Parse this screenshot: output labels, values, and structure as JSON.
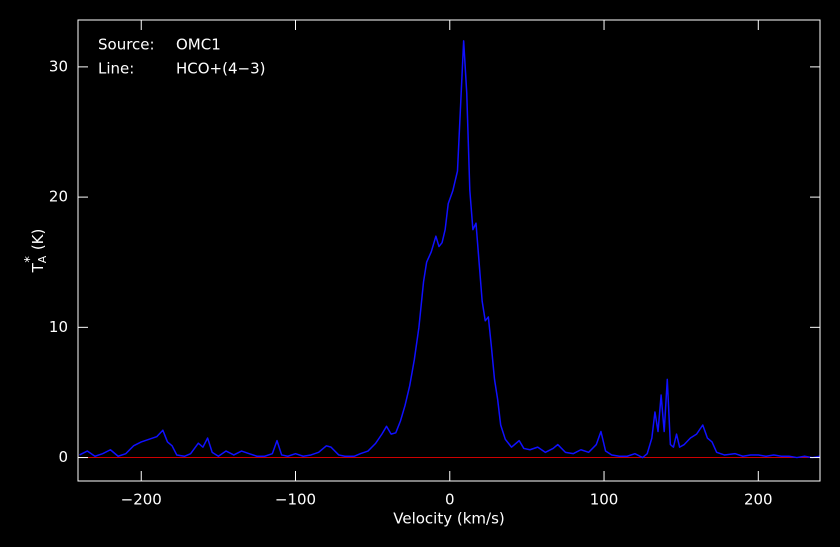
{
  "chart_data": {
    "type": "line",
    "annotations": [
      [
        "Source:",
        "OMC1"
      ],
      [
        "Line:",
        "HCO+(4−3)"
      ]
    ],
    "x_label": "Velocity (km/s)",
    "y_label": {
      "base": "T",
      "sup": "*",
      "sub": "A",
      "unit": "(K)"
    },
    "xlim": [
      -241,
      240
    ],
    "ylim": [
      -1.8,
      33.6
    ],
    "xticks": [
      {
        "value": -200,
        "label": "−200"
      },
      {
        "value": -100,
        "label": "−100"
      },
      0,
      100,
      200
    ],
    "yticks": [
      0,
      10,
      20,
      30
    ],
    "background": "#000000",
    "axis_color": "#ffffff",
    "baseline_color": "#cc0000",
    "x": [
      -240,
      -235,
      -230,
      -225,
      -220,
      -215,
      -210,
      -205,
      -200,
      -195,
      -190,
      -186,
      -183,
      -180,
      -177,
      -172,
      -168,
      -163,
      -160,
      -157,
      -154,
      -150,
      -145,
      -140,
      -135,
      -130,
      -125,
      -120,
      -115,
      -112,
      -109,
      -105,
      -100,
      -95,
      -90,
      -85,
      -80,
      -77,
      -72,
      -68,
      -62,
      -58,
      -53,
      -48,
      -44,
      -41,
      -38,
      -35,
      -32,
      -29,
      -26,
      -23,
      -20,
      -17,
      -15,
      -12,
      -9,
      -7,
      -5,
      -3,
      -1,
      2,
      5,
      7,
      9,
      11,
      13,
      15,
      17,
      19,
      21,
      23,
      25,
      27,
      29,
      31,
      33,
      36,
      40,
      45,
      48,
      52,
      57,
      62,
      67,
      70,
      75,
      80,
      85,
      90,
      95,
      98,
      101,
      105,
      110,
      115,
      120,
      125,
      128,
      131,
      133,
      135,
      137,
      139,
      141,
      143,
      145,
      147,
      149,
      152,
      156,
      160,
      164,
      167,
      170,
      173,
      178,
      185,
      190,
      195,
      200,
      205,
      210,
      215,
      220,
      225,
      230,
      235,
      240
    ],
    "series": [
      {
        "color": "#1010ff",
        "values": [
          0.2,
          0.5,
          0.1,
          0.3,
          0.6,
          0.1,
          0.3,
          0.9,
          1.2,
          1.4,
          1.6,
          2.1,
          1.2,
          0.9,
          0.2,
          0.1,
          0.3,
          1.1,
          0.8,
          1.5,
          0.4,
          0.1,
          0.5,
          0.2,
          0.5,
          0.3,
          0.1,
          0.1,
          0.3,
          1.3,
          0.2,
          0.1,
          0.3,
          0.1,
          0.2,
          0.4,
          0.9,
          0.8,
          0.2,
          0.1,
          0.1,
          0.3,
          0.5,
          1.1,
          1.8,
          2.4,
          1.8,
          1.9,
          2.8,
          4.0,
          5.5,
          7.5,
          10.0,
          13.5,
          15.0,
          15.8,
          17.0,
          16.2,
          16.5,
          17.5,
          19.5,
          20.5,
          22.0,
          27.0,
          32.0,
          28.0,
          20.5,
          17.5,
          18.0,
          15.0,
          12.0,
          10.5,
          10.8,
          8.5,
          6.0,
          4.5,
          2.5,
          1.4,
          0.8,
          1.3,
          0.7,
          0.6,
          0.8,
          0.4,
          0.7,
          1.0,
          0.4,
          0.3,
          0.6,
          0.4,
          1.0,
          2.0,
          0.5,
          0.2,
          0.1,
          0.1,
          0.3,
          0.0,
          0.3,
          1.5,
          3.5,
          2.0,
          4.8,
          2.0,
          6.0,
          1.0,
          0.8,
          1.8,
          0.8,
          1.0,
          1.5,
          1.8,
          2.5,
          1.5,
          1.2,
          0.4,
          0.2,
          0.3,
          0.1,
          0.2,
          0.2,
          0.1,
          0.2,
          0.1,
          0.1,
          0.0,
          0.1,
          0.0,
          0.1
        ]
      }
    ]
  }
}
